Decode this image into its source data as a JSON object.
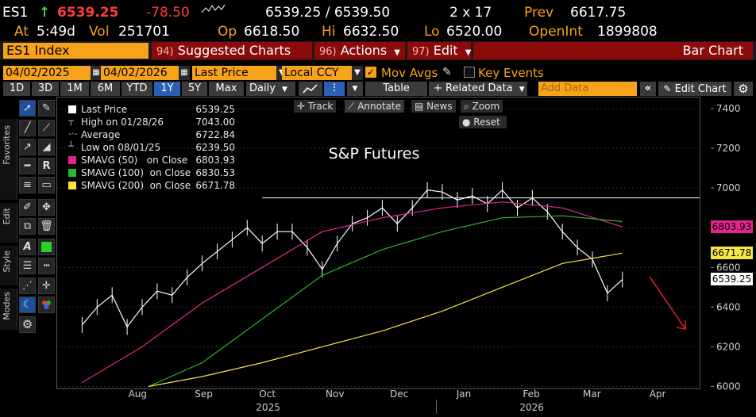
{
  "header": {
    "ticker": "ES1",
    "arrow": "↑",
    "last": "6539.25",
    "change": "-78.50",
    "bid_ask": "6539.25 / 6539.50",
    "size": "2 x 17",
    "prev_label": "Prev",
    "prev_value": "6617.75",
    "at_label": "At",
    "at_value": "5:49d",
    "vol_label": "Vol",
    "vol_value": "251701",
    "op_label": "Op",
    "op_value": "6618.50",
    "hi_label": "Hi",
    "hi_value": "6632.50",
    "lo_label": "Lo",
    "lo_value": "6520.00",
    "oi_label": "OpenInt",
    "oi_value": "1899808"
  },
  "titlebar": {
    "security": "ES1 Index",
    "suggested_num": "94)",
    "suggested": "Suggested Charts",
    "actions_num": "96)",
    "actions": "Actions",
    "edit_num": "97)",
    "edit": "Edit",
    "chart_type": "Bar Chart"
  },
  "fields": {
    "start_date": "04/02/2025",
    "end_date": "04/02/2026",
    "field": "Last Price",
    "currency": "Local CCY",
    "mov_avgs": "Mov Avgs",
    "key_events": "Key Events"
  },
  "toolbar": {
    "ranges": [
      "1D",
      "3D",
      "1M",
      "6M",
      "YTD",
      "1Y",
      "5Y",
      "Max"
    ],
    "selected_range": "1Y",
    "period": "Daily",
    "table": "Table",
    "related": "+ Related Data",
    "add_data_placeholder": "Add Data",
    "edit_chart": "Edit Chart"
  },
  "sidebar_tabs": [
    "Favorites",
    "Edit",
    "Style",
    "Modes"
  ],
  "chart_tools": {
    "track": "Track",
    "annotate": "Annotate",
    "news": "News",
    "zoom": "Zoom",
    "reset": "Reset"
  },
  "legend": [
    {
      "name": "Last Price",
      "value": "6539.25",
      "color": "#ffffff"
    },
    {
      "name": "High on 01/28/26",
      "value": "7043.00",
      "color": ""
    },
    {
      "name": "Average",
      "value": "6722.84",
      "color": ""
    },
    {
      "name": "Low on 08/01/25",
      "value": "6239.50",
      "color": ""
    },
    {
      "name": "SMAVG (50)   on Close",
      "value": "6803.93",
      "color": "#e6248f"
    },
    {
      "name": "SMAVG (100)  on Close",
      "value": "6830.53",
      "color": "#2db52d"
    },
    {
      "name": "SMAVG (200)  on Close",
      "value": "6671.78",
      "color": "#f5e642"
    }
  ],
  "price_tags": [
    {
      "value": "6803.93",
      "color": "#e6248f"
    },
    {
      "value": "6671.78",
      "color": "#f5e642"
    },
    {
      "value": "6539.25",
      "color": "#ffffff"
    }
  ],
  "chart_data": {
    "type": "line",
    "title": "S&P Futures",
    "y_ticks": [
      6000,
      6200,
      6400,
      6600,
      6800,
      7000,
      7200,
      7400
    ],
    "ylim": [
      5990,
      7420
    ],
    "x_months": [
      "Aug",
      "Sep",
      "Oct",
      "Nov",
      "Dec",
      "Jan",
      "Feb",
      "Mar",
      "Apr"
    ],
    "x_years": [
      "2025",
      "2026"
    ],
    "resistance_level": 6950,
    "series": [
      {
        "name": "Last Price",
        "color": "#ffffff",
        "x": [
          "2025-07-20",
          "2025-07-27",
          "2025-08-03",
          "2025-08-10",
          "2025-08-17",
          "2025-08-24",
          "2025-08-31",
          "2025-09-07",
          "2025-09-14",
          "2025-09-21",
          "2025-09-28",
          "2025-10-05",
          "2025-10-12",
          "2025-10-19",
          "2025-10-26",
          "2025-11-02",
          "2025-11-09",
          "2025-11-16",
          "2025-11-23",
          "2025-11-30",
          "2025-12-07",
          "2025-12-14",
          "2025-12-21",
          "2025-12-28",
          "2026-01-04",
          "2026-01-11",
          "2026-01-18",
          "2026-01-25",
          "2026-02-01",
          "2026-02-08",
          "2026-02-15",
          "2026-02-22",
          "2026-03-01",
          "2026-03-08",
          "2026-03-15",
          "2026-03-22",
          "2026-03-29"
        ],
        "values": [
          6310,
          6400,
          6460,
          6300,
          6400,
          6480,
          6460,
          6550,
          6620,
          6680,
          6740,
          6800,
          6720,
          6780,
          6780,
          6700,
          6590,
          6720,
          6820,
          6850,
          6900,
          6820,
          6900,
          6990,
          6980,
          6940,
          6960,
          6920,
          6990,
          6900,
          6950,
          6880,
          6780,
          6700,
          6640,
          6470,
          6539
        ]
      },
      {
        "name": "SMAVG (50)",
        "color": "#e6248f",
        "x": [
          "2025-07-20",
          "2025-08-17",
          "2025-09-14",
          "2025-10-12",
          "2025-11-09",
          "2025-12-07",
          "2026-01-04",
          "2026-02-01",
          "2026-03-01",
          "2026-03-29"
        ],
        "values": [
          6020,
          6200,
          6420,
          6600,
          6780,
          6850,
          6900,
          6930,
          6900,
          6804
        ]
      },
      {
        "name": "SMAVG (100)",
        "color": "#2db52d",
        "x": [
          "2025-08-20",
          "2025-09-14",
          "2025-10-12",
          "2025-11-09",
          "2025-12-07",
          "2026-01-04",
          "2026-02-01",
          "2026-03-01",
          "2026-03-29"
        ],
        "values": [
          6000,
          6120,
          6340,
          6560,
          6690,
          6780,
          6850,
          6860,
          6831
        ]
      },
      {
        "name": "SMAVG (200)",
        "color": "#f5e642",
        "x": [
          "2025-08-20",
          "2025-09-14",
          "2025-10-12",
          "2025-11-09",
          "2025-12-07",
          "2026-01-04",
          "2026-02-01",
          "2026-03-01",
          "2026-03-29"
        ],
        "values": [
          6000,
          6050,
          6120,
          6200,
          6280,
          6380,
          6500,
          6620,
          6672
        ]
      }
    ]
  }
}
